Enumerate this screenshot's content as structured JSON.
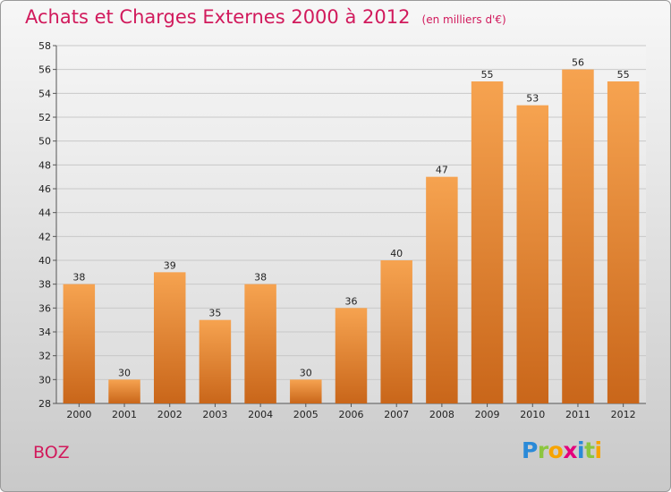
{
  "chart_title": "Achats et Charges Externes 2000 à 2012",
  "chart_subtitle": "(en milliers d'€)",
  "commune": "BOZ",
  "logo_letters": [
    {
      "ch": "P",
      "color": "#2a8ad8"
    },
    {
      "ch": "r",
      "color": "#8cc63f"
    },
    {
      "ch": "o",
      "color": "#f7a400"
    },
    {
      "ch": "x",
      "color": "#e4007c"
    },
    {
      "ch": "i",
      "color": "#2a8ad8"
    },
    {
      "ch": "t",
      "color": "#8cc63f"
    },
    {
      "ch": "i",
      "color": "#f7a400"
    }
  ],
  "chart_data": {
    "type": "bar",
    "categories": [
      "2000",
      "2001",
      "2002",
      "2003",
      "2004",
      "2005",
      "2006",
      "2007",
      "2008",
      "2009",
      "2010",
      "2011",
      "2012"
    ],
    "values": [
      38,
      30,
      39,
      35,
      38,
      30,
      36,
      40,
      47,
      55,
      53,
      56,
      55
    ],
    "ylim": [
      28,
      58
    ],
    "yticks": [
      28,
      30,
      32,
      34,
      36,
      38,
      40,
      42,
      44,
      46,
      48,
      50,
      52,
      54,
      56,
      58
    ],
    "grid": true,
    "bar_color_top": "#f6a350",
    "bar_color_bottom": "#c9661a"
  }
}
